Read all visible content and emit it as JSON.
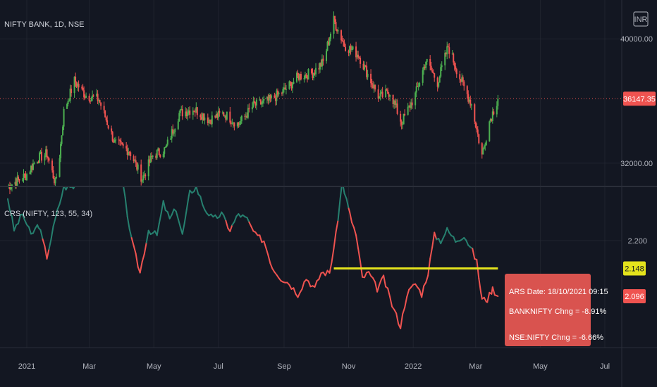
{
  "colors": {
    "up": "#26a69a",
    "down": "#ef5350",
    "candle_up": "#4caf50",
    "candle_down": "#ef5350",
    "crs_up": "#26806f",
    "crs_down": "#ef5350",
    "threshold": "#e4e31c",
    "bg": "#131722",
    "grid": "#2a2e39",
    "text": "#b2b5be",
    "tooltip_bg": "#d9534f"
  },
  "chart_data": [
    {
      "type": "candlestick",
      "title": "NIFTY BANK, 1D, NSE",
      "currency": "INR",
      "y_ticks": [
        "40000.00",
        "32000.00"
      ],
      "ylim": [
        30500,
        42500
      ],
      "last_price": "36147.35",
      "last_price_value": 36147.35,
      "series": {
        "name": "NIFTY BANK",
        "close": [
          {
            "date": "2020-12-14",
            "v": 30500
          },
          {
            "date": "2020-12-31",
            "v": 31200
          },
          {
            "date": "2021-01-11",
            "v": 32300
          },
          {
            "date": "2021-01-20",
            "v": 32600
          },
          {
            "date": "2021-01-28",
            "v": 30700
          },
          {
            "date": "2021-02-01",
            "v": 32500
          },
          {
            "date": "2021-02-05",
            "v": 35300
          },
          {
            "date": "2021-02-15",
            "v": 37300
          },
          {
            "date": "2021-02-25",
            "v": 36400
          },
          {
            "date": "2021-03-10",
            "v": 36100
          },
          {
            "date": "2021-03-25",
            "v": 33300
          },
          {
            "date": "2021-04-08",
            "v": 32800
          },
          {
            "date": "2021-04-20",
            "v": 31000
          },
          {
            "date": "2021-04-30",
            "v": 32500
          },
          {
            "date": "2021-05-12",
            "v": 32900
          },
          {
            "date": "2021-05-25",
            "v": 35200
          },
          {
            "date": "2021-06-08",
            "v": 35500
          },
          {
            "date": "2021-06-22",
            "v": 34800
          },
          {
            "date": "2021-07-06",
            "v": 35200
          },
          {
            "date": "2021-07-20",
            "v": 34500
          },
          {
            "date": "2021-08-03",
            "v": 35700
          },
          {
            "date": "2021-08-17",
            "v": 36000
          },
          {
            "date": "2021-08-31",
            "v": 36600
          },
          {
            "date": "2021-09-15",
            "v": 37600
          },
          {
            "date": "2021-09-28",
            "v": 37800
          },
          {
            "date": "2021-10-08",
            "v": 38500
          },
          {
            "date": "2021-10-18",
            "v": 41200
          },
          {
            "date": "2021-10-28",
            "v": 39600
          },
          {
            "date": "2021-11-10",
            "v": 39000
          },
          {
            "date": "2021-11-22",
            "v": 37300
          },
          {
            "date": "2021-11-30",
            "v": 36200
          },
          {
            "date": "2021-12-10",
            "v": 36600
          },
          {
            "date": "2021-12-21",
            "v": 34600
          },
          {
            "date": "2022-01-03",
            "v": 36400
          },
          {
            "date": "2022-01-13",
            "v": 38600
          },
          {
            "date": "2022-01-24",
            "v": 37200
          },
          {
            "date": "2022-02-03",
            "v": 39500
          },
          {
            "date": "2022-02-14",
            "v": 37500
          },
          {
            "date": "2022-02-25",
            "v": 35800
          },
          {
            "date": "2022-03-07",
            "v": 32500
          },
          {
            "date": "2022-03-14",
            "v": 34700
          },
          {
            "date": "2022-03-22",
            "v": 36147.35
          }
        ]
      }
    },
    {
      "type": "line",
      "title": "CRS (NIFTY, 123, 55, 34)",
      "y_ticks": [
        "2.200"
      ],
      "ylim": [
        2.0,
        2.3
      ],
      "threshold_label": "2.148",
      "threshold_value": 2.148,
      "last_value_label": "2.096",
      "last_value": 2.096,
      "series": {
        "name": "CRS",
        "values": [
          {
            "date": "2020-12-14",
            "v": 2.28
          },
          {
            "date": "2020-12-20",
            "v": 2.22
          },
          {
            "date": "2020-12-28",
            "v": 2.25
          },
          {
            "date": "2021-01-05",
            "v": 2.21
          },
          {
            "date": "2021-01-12",
            "v": 2.23
          },
          {
            "date": "2021-01-20",
            "v": 2.17
          },
          {
            "date": "2021-01-28",
            "v": 2.24
          },
          {
            "date": "2021-02-05",
            "v": 2.3
          },
          {
            "date": "2021-02-14",
            "v": 2.3
          },
          {
            "date": "2021-02-24",
            "v": 2.32
          },
          {
            "date": "2021-03-05",
            "v": 2.33
          },
          {
            "date": "2021-03-14",
            "v": 2.33
          },
          {
            "date": "2021-03-24",
            "v": 2.33
          },
          {
            "date": "2021-04-02",
            "v": 2.3
          },
          {
            "date": "2021-04-10",
            "v": 2.2
          },
          {
            "date": "2021-04-18",
            "v": 2.14
          },
          {
            "date": "2021-04-26",
            "v": 2.22
          },
          {
            "date": "2021-05-04",
            "v": 2.21
          },
          {
            "date": "2021-05-10",
            "v": 2.27
          },
          {
            "date": "2021-05-16",
            "v": 2.24
          },
          {
            "date": "2021-05-22",
            "v": 2.26
          },
          {
            "date": "2021-05-28",
            "v": 2.21
          },
          {
            "date": "2021-06-04",
            "v": 2.29
          },
          {
            "date": "2021-06-10",
            "v": 2.3
          },
          {
            "date": "2021-06-18",
            "v": 2.26
          },
          {
            "date": "2021-06-26",
            "v": 2.24
          },
          {
            "date": "2021-07-04",
            "v": 2.25
          },
          {
            "date": "2021-07-12",
            "v": 2.22
          },
          {
            "date": "2021-07-20",
            "v": 2.25
          },
          {
            "date": "2021-07-28",
            "v": 2.24
          },
          {
            "date": "2021-08-05",
            "v": 2.21
          },
          {
            "date": "2021-08-13",
            "v": 2.2
          },
          {
            "date": "2021-08-21",
            "v": 2.15
          },
          {
            "date": "2021-08-29",
            "v": 2.13
          },
          {
            "date": "2021-09-06",
            "v": 2.12
          },
          {
            "date": "2021-09-14",
            "v": 2.1
          },
          {
            "date": "2021-09-22",
            "v": 2.13
          },
          {
            "date": "2021-09-30",
            "v": 2.11
          },
          {
            "date": "2021-10-06",
            "v": 2.14
          },
          {
            "date": "2021-10-14",
            "v": 2.14
          },
          {
            "date": "2021-10-20",
            "v": 2.21
          },
          {
            "date": "2021-10-26",
            "v": 2.31
          },
          {
            "date": "2021-11-02",
            "v": 2.25
          },
          {
            "date": "2021-11-08",
            "v": 2.21
          },
          {
            "date": "2021-11-14",
            "v": 2.13
          },
          {
            "date": "2021-11-20",
            "v": 2.14
          },
          {
            "date": "2021-11-28",
            "v": 2.11
          },
          {
            "date": "2021-12-04",
            "v": 2.13
          },
          {
            "date": "2021-12-12",
            "v": 2.08
          },
          {
            "date": "2021-12-20",
            "v": 2.04
          },
          {
            "date": "2021-12-26",
            "v": 2.1
          },
          {
            "date": "2022-01-03",
            "v": 2.12
          },
          {
            "date": "2022-01-09",
            "v": 2.1
          },
          {
            "date": "2022-01-15",
            "v": 2.14
          },
          {
            "date": "2022-01-21",
            "v": 2.21
          },
          {
            "date": "2022-01-27",
            "v": 2.2
          },
          {
            "date": "2022-02-02",
            "v": 2.22
          },
          {
            "date": "2022-02-10",
            "v": 2.2
          },
          {
            "date": "2022-02-18",
            "v": 2.21
          },
          {
            "date": "2022-02-26",
            "v": 2.18
          },
          {
            "date": "2022-03-02",
            "v": 2.16
          },
          {
            "date": "2022-03-07",
            "v": 2.09
          },
          {
            "date": "2022-03-12",
            "v": 2.09
          },
          {
            "date": "2022-03-17",
            "v": 2.11
          },
          {
            "date": "2022-03-22",
            "v": 2.096
          }
        ]
      }
    }
  ],
  "x_axis": {
    "ticks": [
      {
        "label": "2021",
        "date": "2021-01-01"
      },
      {
        "label": "Mar",
        "date": "2021-03-01"
      },
      {
        "label": "May",
        "date": "2021-05-01"
      },
      {
        "label": "Jul",
        "date": "2021-07-01"
      },
      {
        "label": "Sep",
        "date": "2021-09-01"
      },
      {
        "label": "Nov",
        "date": "2021-11-01"
      },
      {
        "label": "2022",
        "date": "2022-01-01"
      },
      {
        "label": "Mar",
        "date": "2022-03-01"
      },
      {
        "label": "May",
        "date": "2022-05-01"
      },
      {
        "label": "Jul",
        "date": "2022-07-01"
      }
    ]
  },
  "tooltip": {
    "line1": "ARS Date: 18/10/2021 09:15",
    "line2": "BANKNIFTY Chng = -8.91%",
    "line3": "NSE:NIFTY Chng = -6.66%"
  }
}
